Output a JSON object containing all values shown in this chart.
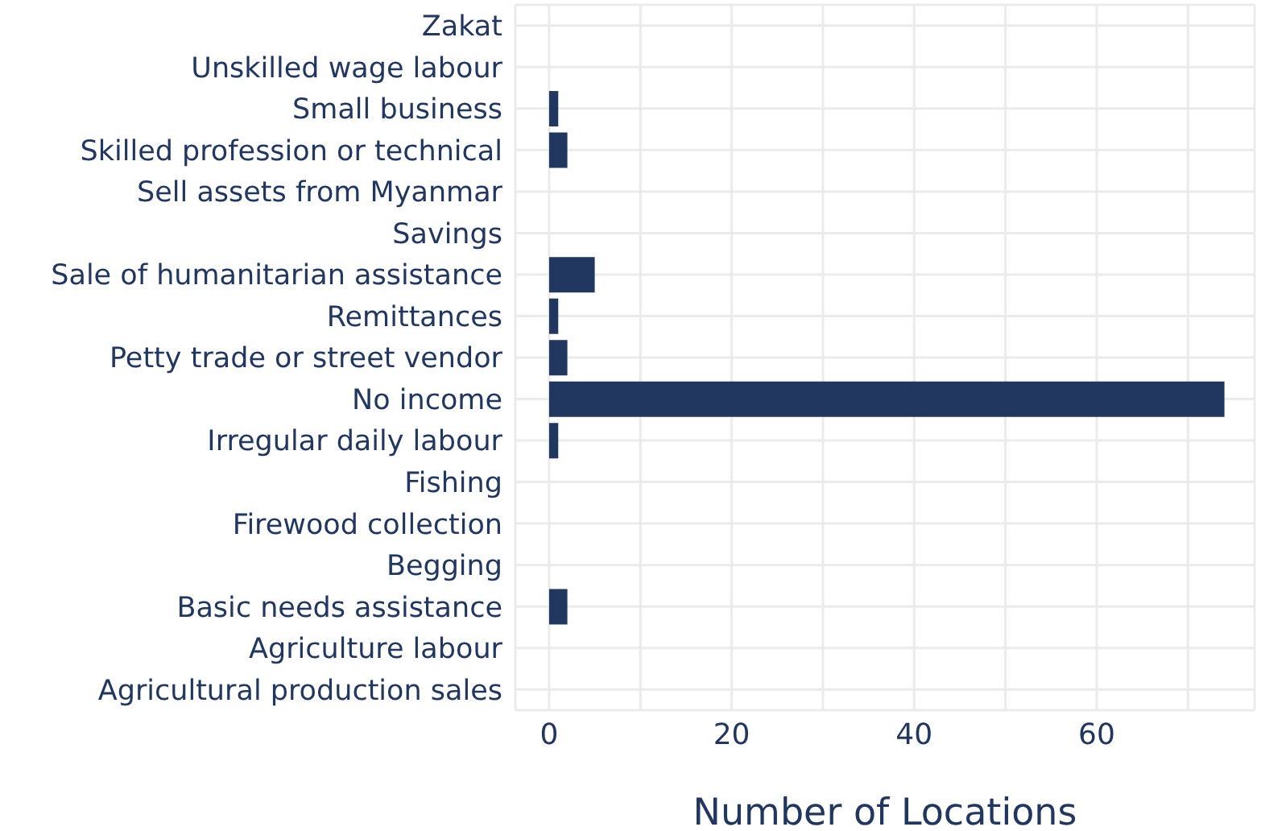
{
  "chart_data": {
    "type": "bar",
    "orientation": "horizontal",
    "xlabel": "Number of Locations",
    "categories": [
      "Zakat",
      "Unskilled wage labour",
      "Small business",
      "Skilled profession or technical",
      "Sell assets from Myanmar",
      "Savings",
      "Sale of humanitarian assistance",
      "Remittances",
      "Petty trade or street vendor",
      "No income",
      "Irregular daily labour",
      "Fishing",
      "Firewood collection",
      "Begging",
      "Basic needs assistance",
      "Agriculture labour",
      "Agricultural production sales"
    ],
    "values": [
      0,
      0,
      1,
      2,
      0,
      0,
      5,
      1,
      2,
      74,
      1,
      0,
      0,
      0,
      2,
      0,
      0
    ],
    "color": "#22375f",
    "xlim": [
      -3.7,
      77.3
    ],
    "xticks": [
      0,
      {
        "value": 10,
        "label": null
      },
      20,
      {
        "value": 30,
        "label": null
      },
      40,
      {
        "value": 50,
        "label": null
      },
      60,
      {
        "value": 70,
        "label": null
      }
    ],
    "grid": true
  }
}
